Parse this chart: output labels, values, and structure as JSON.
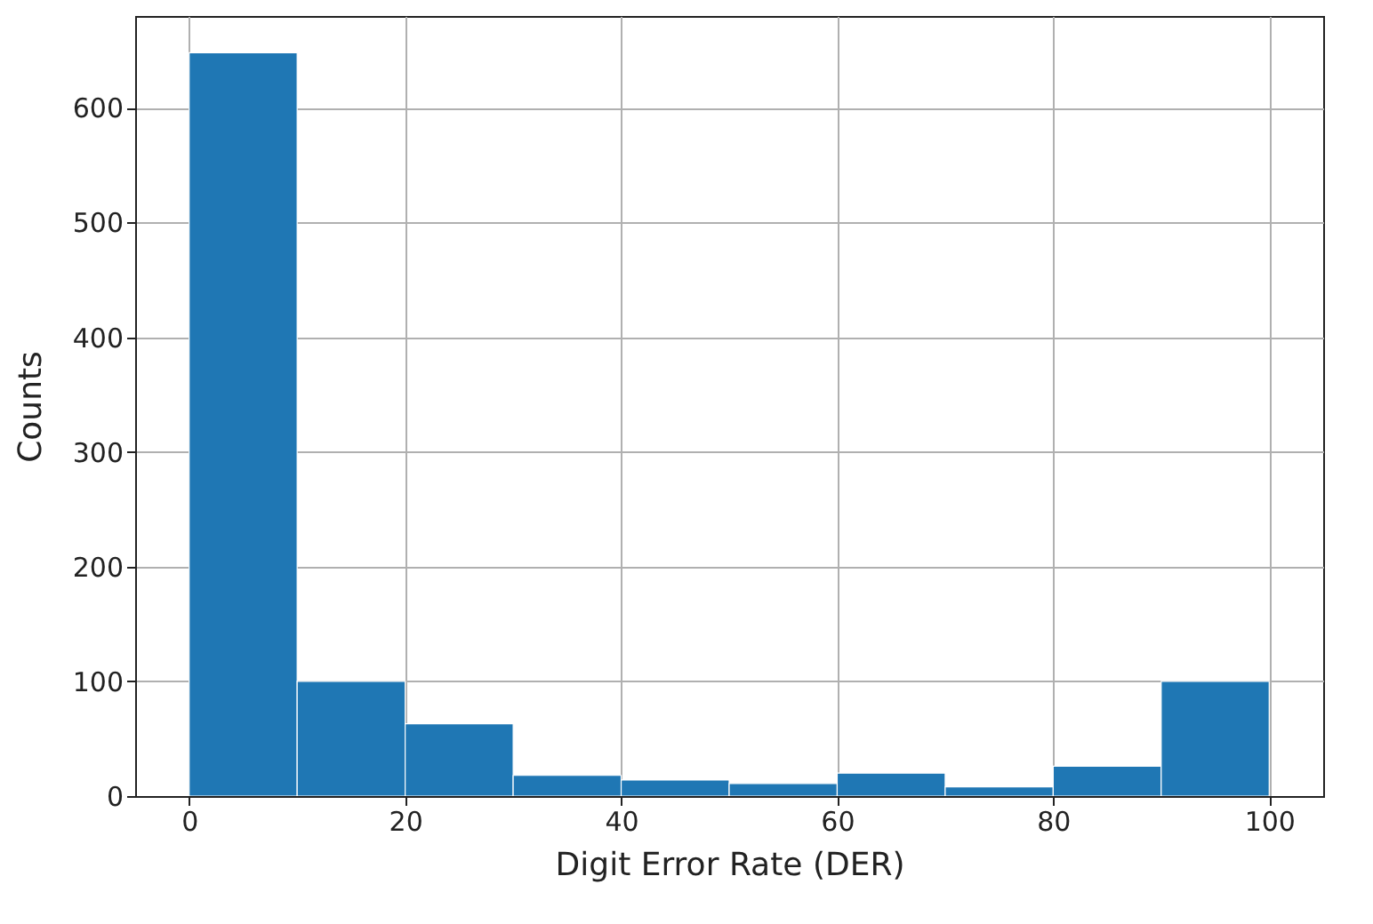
{
  "chart_data": {
    "type": "histogram",
    "xlabel": "Digit Error Rate (DER)",
    "ylabel": "Counts",
    "color": "#1f77b4",
    "bins": [
      0,
      10,
      20,
      30,
      40,
      50,
      60,
      70,
      80,
      90,
      100
    ],
    "values": [
      648,
      100,
      63,
      18,
      14,
      11,
      20,
      8,
      26,
      100
    ],
    "xlim": [
      -5,
      105
    ],
    "ylim": [
      0,
      680
    ],
    "xticks": [
      0,
      20,
      40,
      60,
      80,
      100
    ],
    "yticks": [
      0,
      100,
      200,
      300,
      400,
      500,
      600
    ],
    "grid": true
  }
}
